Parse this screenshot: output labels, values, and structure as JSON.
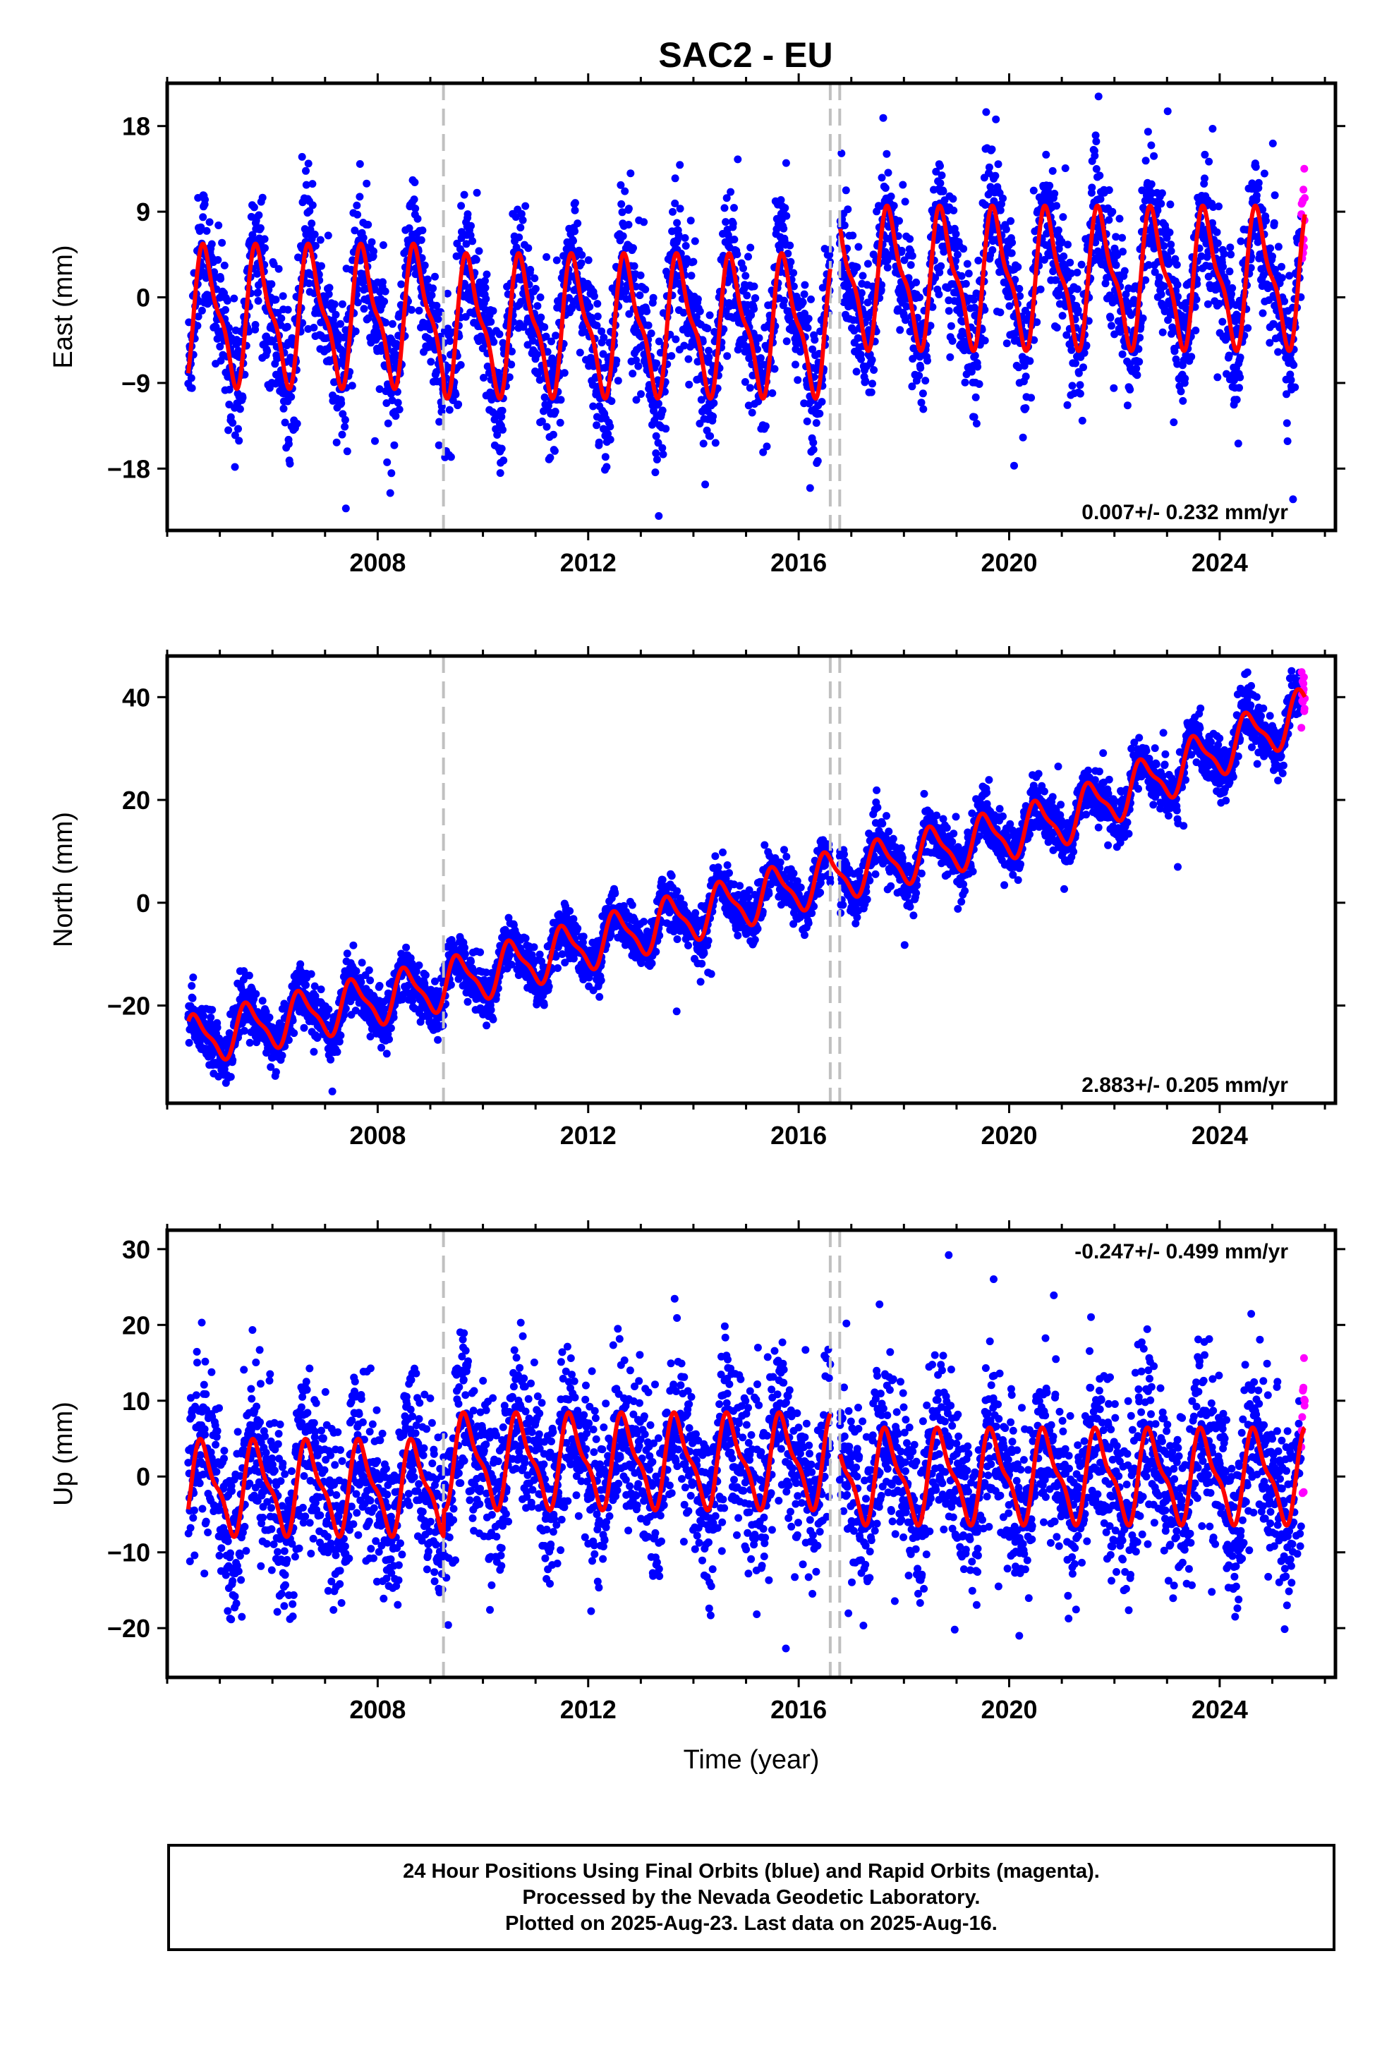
{
  "title": "SAC2 - EU",
  "colors": {
    "final_orbits": "#0000ff",
    "rapid_orbits": "#ff00ff",
    "model": "#ff0000",
    "event_lines": "#c0c0c0",
    "frame": "#000000"
  },
  "x_tick_labels": [
    "2008",
    "2012",
    "2016",
    "2020",
    "2024"
  ],
  "x_axis_label": "Time (year)",
  "footer": {
    "line1": "24 Hour Positions Using Final Orbits (blue) and Rapid Orbits (magenta).",
    "line2": "Processed by the Nevada Geodetic Laboratory.",
    "line3": "Plotted on 2025-Aug-23. Last data on 2025-Aug-16."
  },
  "chart_data": [
    {
      "type": "scatter",
      "component": "East",
      "ylabel": "East (mm)",
      "rate_label": "0.007+/- 0.232 mm/yr",
      "rate_mm_per_yr": 0.007,
      "rate_sigma_mm_per_yr": 0.232,
      "xlim": [
        2004.0,
        2026.2
      ],
      "ylim": [
        -24.5,
        22.5
      ],
      "x_ticks": [
        2008,
        2012,
        2016,
        2020,
        2024
      ],
      "y_ticks": [
        -18,
        -9,
        0,
        9,
        18
      ],
      "y_tick_labels": [
        "−18",
        "−9",
        "0",
        "9",
        "18"
      ],
      "data_start": 2004.4,
      "data_end": 2025.62,
      "rapid_start": 2025.55,
      "event_lines": [
        2009.25,
        2016.6,
        2016.78
      ],
      "model_segments": [
        {
          "start": 2004.4,
          "end": 2009.25,
          "offset": -2.0,
          "amplitude": 6.5,
          "phase": 0.5
        },
        {
          "start": 2009.25,
          "end": 2016.6,
          "offset": -3.0,
          "amplitude": 6.5,
          "phase": 0.5
        },
        {
          "start": 2016.78,
          "end": 2025.62,
          "offset": 2.0,
          "amplitude": 6.5,
          "phase": 0.5
        }
      ],
      "scatter_sigma": 3.5,
      "highlight_series": [
        {
          "name": "Final Orbits",
          "color": "#0000ff"
        },
        {
          "name": "Rapid Orbits",
          "color": "#ff00ff"
        },
        {
          "name": "Model",
          "color": "#ff0000"
        }
      ]
    },
    {
      "type": "scatter",
      "component": "North",
      "ylabel": "North (mm)",
      "rate_label": "2.883+/- 0.205 mm/yr",
      "rate_mm_per_yr": 2.883,
      "rate_sigma_mm_per_yr": 0.205,
      "xlim": [
        2004.0,
        2026.2
      ],
      "ylim": [
        -39,
        48
      ],
      "x_ticks": [
        2008,
        2012,
        2016,
        2020,
        2024
      ],
      "y_ticks": [
        -20,
        0,
        20,
        40
      ],
      "y_tick_labels": [
        "−20",
        "0",
        "20",
        "40"
      ],
      "data_start": 2004.4,
      "data_end": 2025.62,
      "rapid_start": 2025.55,
      "event_lines": [
        2009.25,
        2016.6,
        2016.78
      ],
      "model_points": [
        [
          2004.4,
          -27
        ],
        [
          2009.25,
          -16
        ],
        [
          2016.6,
          5
        ],
        [
          2021.0,
          16
        ],
        [
          2025.62,
          37
        ]
      ],
      "amplitude": 4.5,
      "phase": 0.3,
      "scatter_sigma": 2.5,
      "highlight_series": [
        {
          "name": "Final Orbits",
          "color": "#0000ff"
        },
        {
          "name": "Rapid Orbits",
          "color": "#ff00ff"
        },
        {
          "name": "Model",
          "color": "#ff0000"
        }
      ]
    },
    {
      "type": "scatter",
      "component": "Up",
      "ylabel": "Up (mm)",
      "rate_label": "-0.247+/- 0.499 mm/yr",
      "rate_mm_per_yr": -0.247,
      "rate_sigma_mm_per_yr": 0.499,
      "xlim": [
        2004.0,
        2026.2
      ],
      "ylim": [
        -26.5,
        32.5
      ],
      "x_ticks": [
        2008,
        2012,
        2016,
        2020,
        2024
      ],
      "y_ticks": [
        -20,
        -10,
        0,
        10,
        20,
        30
      ],
      "y_tick_labels": [
        "−20",
        "−10",
        "0",
        "10",
        "20",
        "30"
      ],
      "data_start": 2004.4,
      "data_end": 2025.62,
      "rapid_start": 2025.55,
      "event_lines": [
        2009.25,
        2016.6,
        2016.78
      ],
      "model_segments": [
        {
          "start": 2004.4,
          "end": 2009.25,
          "offset": -1.5,
          "amplitude": 5.5,
          "phase": 0.45
        },
        {
          "start": 2009.25,
          "end": 2016.6,
          "offset": 2.0,
          "amplitude": 5.5,
          "phase": 0.45
        },
        {
          "start": 2016.78,
          "end": 2025.62,
          "offset": 0.0,
          "amplitude": 5.5,
          "phase": 0.45
        }
      ],
      "scatter_sigma": 5.5,
      "highlight_series": [
        {
          "name": "Final Orbits",
          "color": "#0000ff"
        },
        {
          "name": "Rapid Orbits",
          "color": "#ff00ff"
        },
        {
          "name": "Model",
          "color": "#ff0000"
        }
      ]
    }
  ]
}
